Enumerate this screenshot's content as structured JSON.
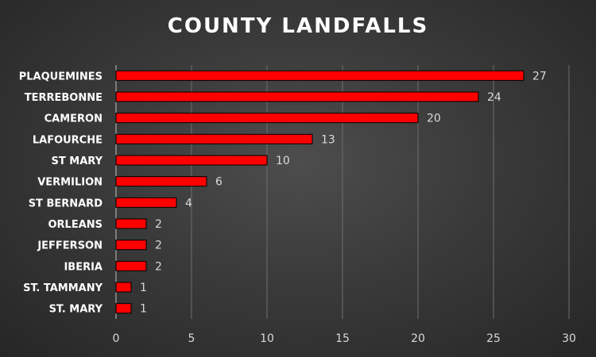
{
  "chart_data": {
    "type": "bar",
    "orientation": "horizontal",
    "title": "COUNTY LANDFALLS",
    "categories": [
      "PLAQUEMINES",
      "TERREBONNE",
      "CAMERON",
      "LAFOURCHE",
      "ST MARY",
      "VERMILION",
      "ST BERNARD",
      "ORLEANS",
      "JEFFERSON",
      "IBERIA",
      "ST. TAMMANY",
      "ST. MARY"
    ],
    "values": [
      27,
      24,
      20,
      13,
      10,
      6,
      4,
      2,
      2,
      2,
      1,
      1
    ],
    "xlim": [
      0,
      30
    ],
    "xticks": [
      0,
      5,
      10,
      15,
      20,
      25,
      30
    ],
    "xlabel": "",
    "ylabel": "",
    "grid": "vertical",
    "data_labels": true,
    "bar_color": "#ff0000",
    "bar_edge_color": "#000000",
    "background_color": "#3a3a3a"
  }
}
